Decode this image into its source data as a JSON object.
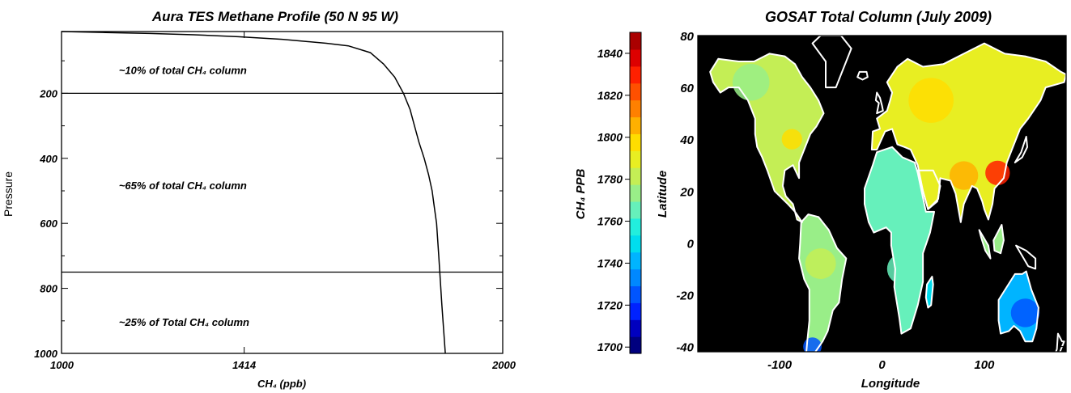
{
  "chart_data": [
    {
      "type": "line",
      "title": "Aura TES Methane Profile (50 N 95 W)",
      "xlabel": "CH₄ (ppb)",
      "ylabel": "Pressure",
      "xlim": [
        1000,
        2000
      ],
      "ylim": [
        1000,
        10
      ],
      "y_inverted": true,
      "x_ticks": [
        "1000",
        "1414",
        "2000"
      ],
      "y_ticks": [
        "200",
        "400",
        "600",
        "800",
        "1000"
      ],
      "grid": false,
      "series": [
        {
          "x": [
            1000,
            1100,
            1200,
            1300,
            1400,
            1500,
            1600,
            1650,
            1700,
            1730,
            1755,
            1775,
            1790,
            1800,
            1810,
            1822,
            1832,
            1840,
            1845,
            1850,
            1855,
            1862,
            1870
          ],
          "y": [
            10,
            13,
            16,
            20,
            26,
            34,
            46,
            54,
            75,
            110,
            150,
            200,
            250,
            300,
            350,
            400,
            450,
            500,
            550,
            600,
            700,
            850,
            1000
          ]
        }
      ],
      "hlines": [
        200,
        750
      ],
      "annotations": [
        {
          "text": "~10% of total CH₄ column",
          "x": 1130,
          "y": 140
        },
        {
          "text": "~65% of total CH₄ column",
          "x": 1130,
          "y": 495
        },
        {
          "text": "~25% of Total CH₄ column",
          "x": 1130,
          "y": 915
        }
      ]
    },
    {
      "type": "heatmap",
      "title": "GOSAT Total Column (July 2009)",
      "xlabel": "Longitude",
      "ylabel": "Latitude",
      "xlim": [
        -180,
        180
      ],
      "ylim": [
        -42,
        80
      ],
      "x_ticks": [
        "-100",
        "0",
        "100"
      ],
      "y_ticks": [
        "-40",
        "-20",
        "0",
        "20",
        "40",
        "60",
        "80"
      ],
      "background": "#000000",
      "colorbar": {
        "label": "CH₄ PPB",
        "range": [
          1697,
          1850
        ],
        "ticks": [
          "1700",
          "1720",
          "1740",
          "1760",
          "1780",
          "1800",
          "1820",
          "1840"
        ],
        "colors": [
          "#00007f",
          "#0000bf",
          "#0022ff",
          "#0055ff",
          "#0088ff",
          "#00b4ff",
          "#00ddee",
          "#22eedd",
          "#66f0bb",
          "#99ee88",
          "#c4ee55",
          "#e8ee22",
          "#ffdd00",
          "#ffb000",
          "#ff8000",
          "#ff5000",
          "#ff2000",
          "#dd0000",
          "#aa0000"
        ]
      },
      "regions": [
        {
          "name": "North America",
          "points": [
            [
              -168,
              66
            ],
            [
              -160,
              71
            ],
            [
              -140,
              70
            ],
            [
              -125,
              70
            ],
            [
              -110,
              73
            ],
            [
              -95,
              72
            ],
            [
              -85,
              69
            ],
            [
              -78,
              64
            ],
            [
              -70,
              60
            ],
            [
              -62,
              55
            ],
            [
              -57,
              50
            ],
            [
              -64,
              45
            ],
            [
              -70,
              42
            ],
            [
              -76,
              36
            ],
            [
              -81,
              31
            ],
            [
              -81,
              25
            ],
            [
              -87,
              30
            ],
            [
              -95,
              28
            ],
            [
              -97,
              22
            ],
            [
              -94,
              18
            ],
            [
              -87,
              15
            ],
            [
              -83,
              9
            ],
            [
              -78,
              8
            ],
            [
              -85,
              12
            ],
            [
              -92,
              15
            ],
            [
              -105,
              20
            ],
            [
              -112,
              28
            ],
            [
              -117,
              33
            ],
            [
              -122,
              37
            ],
            [
              -124,
              42
            ],
            [
              -124,
              48
            ],
            [
              -131,
              55
            ],
            [
              -140,
              60
            ],
            [
              -150,
              60
            ],
            [
              -158,
              58
            ],
            [
              -165,
              62
            ]
          ],
          "value": 1782
        },
        {
          "name": "South America",
          "points": [
            [
              -79,
              8
            ],
            [
              -72,
              11
            ],
            [
              -62,
              10
            ],
            [
              -52,
              5
            ],
            [
              -44,
              -2
            ],
            [
              -35,
              -6
            ],
            [
              -39,
              -14
            ],
            [
              -42,
              -23
            ],
            [
              -48,
              -26
            ],
            [
              -53,
              -34
            ],
            [
              -58,
              -38
            ],
            [
              -65,
              -42
            ],
            [
              -68,
              -46
            ],
            [
              -68,
              -52
            ],
            [
              -73,
              -53
            ],
            [
              -75,
              -47
            ],
            [
              -73,
              -38
            ],
            [
              -71,
              -30
            ],
            [
              -71,
              -18
            ],
            [
              -76,
              -14
            ],
            [
              -81,
              -6
            ],
            [
              -80,
              0
            ]
          ],
          "value": 1771
        },
        {
          "name": "Africa",
          "points": [
            [
              -17,
              15
            ],
            [
              -17,
              21
            ],
            [
              -9,
              30
            ],
            [
              -5,
              35
            ],
            [
              10,
              37
            ],
            [
              20,
              33
            ],
            [
              32,
              31
            ],
            [
              35,
              27
            ],
            [
              43,
              12
            ],
            [
              51,
              12
            ],
            [
              47,
              4
            ],
            [
              40,
              -4
            ],
            [
              40,
              -15
            ],
            [
              35,
              -24
            ],
            [
              28,
              -33
            ],
            [
              19,
              -35
            ],
            [
              17,
              -29
            ],
            [
              12,
              -17
            ],
            [
              13,
              -10
            ],
            [
              9,
              -1
            ],
            [
              9,
              4
            ],
            [
              4,
              6
            ],
            [
              -8,
              4
            ],
            [
              -13,
              8
            ]
          ],
          "value": 1769
        },
        {
          "name": "Eurasia",
          "points": [
            [
              -10,
              36
            ],
            [
              -9,
              43
            ],
            [
              -2,
              44
            ],
            [
              -5,
              48
            ],
            [
              5,
              51
            ],
            [
              8,
              55
            ],
            [
              10,
              58
            ],
            [
              5,
              62
            ],
            [
              15,
              68
            ],
            [
              25,
              71
            ],
            [
              40,
              68
            ],
            [
              60,
              69
            ],
            [
              80,
              73
            ],
            [
              100,
              77
            ],
            [
              120,
              73
            ],
            [
              140,
              72
            ],
            [
              160,
              70
            ],
            [
              175,
              66
            ],
            [
              180,
              65
            ],
            [
              178,
              62
            ],
            [
              160,
              60
            ],
            [
              155,
              55
            ],
            [
              143,
              48
            ],
            [
              135,
              44
            ],
            [
              129,
              38
            ],
            [
              122,
              31
            ],
            [
              119,
              25
            ],
            [
              110,
              21
            ],
            [
              108,
              15
            ],
            [
              104,
              9
            ],
            [
              100,
              13
            ],
            [
              98,
              16
            ],
            [
              93,
              21
            ],
            [
              88,
              22
            ],
            [
              80,
              15
            ],
            [
              77,
              8
            ],
            [
              72,
              19
            ],
            [
              67,
              24
            ],
            [
              57,
              25
            ],
            [
              55,
              17
            ],
            [
              45,
              13
            ],
            [
              40,
              20
            ],
            [
              35,
              30
            ],
            [
              28,
              36
            ],
            [
              22,
              37
            ],
            [
              15,
              38
            ],
            [
              10,
              44
            ],
            [
              3,
              43
            ],
            [
              -5,
              36
            ]
          ],
          "value": 1789
        },
        {
          "name": "Australia",
          "points": [
            [
              114,
              -22
            ],
            [
              122,
              -17
            ],
            [
              130,
              -12
            ],
            [
              137,
              -12
            ],
            [
              141,
              -11
            ],
            [
              146,
              -18
            ],
            [
              153,
              -25
            ],
            [
              151,
              -33
            ],
            [
              147,
              -38
            ],
            [
              140,
              -38
            ],
            [
              135,
              -34
            ],
            [
              129,
              -32
            ],
            [
              124,
              -34
            ],
            [
              116,
              -35
            ],
            [
              114,
              -30
            ]
          ],
          "value": 1738
        },
        {
          "name": "Greenland",
          "points": [
            [
              -55,
              60
            ],
            [
              -45,
              60
            ],
            [
              -40,
              65
            ],
            [
              -35,
              70
            ],
            [
              -30,
              75
            ],
            [
              -40,
              80
            ],
            [
              -60,
              80
            ],
            [
              -68,
              77
            ],
            [
              -55,
              70
            ]
          ],
          "value": null
        },
        {
          "name": "Arabia",
          "points": [
            [
              35,
              28
            ],
            [
              50,
              28
            ],
            [
              57,
              22
            ],
            [
              54,
              16
            ],
            [
              45,
              13
            ],
            [
              40,
              20
            ]
          ],
          "value": 1786
        },
        {
          "name": "Borneo",
          "points": [
            [
              109,
              1
            ],
            [
              117,
              7
            ],
            [
              119,
              1
            ],
            [
              116,
              -4
            ],
            [
              110,
              -3
            ]
          ],
          "value": 1771
        },
        {
          "name": "Sumatra",
          "points": [
            [
              95,
              5
            ],
            [
              104,
              -1
            ],
            [
              106,
              -6
            ],
            [
              101,
              -3
            ],
            [
              97,
              2
            ]
          ],
          "value": 1771
        },
        {
          "name": "Japan",
          "points": [
            [
              130,
              31
            ],
            [
              136,
              35
            ],
            [
              141,
              41
            ],
            [
              142,
              37
            ],
            [
              137,
              33
            ]
          ],
          "value": null
        },
        {
          "name": "Madagascar",
          "points": [
            [
              44,
              -16
            ],
            [
              49,
              -13
            ],
            [
              50,
              -16
            ],
            [
              48,
              -24
            ],
            [
              45,
              -25
            ],
            [
              43,
              -21
            ]
          ],
          "value": 1751
        },
        {
          "name": "New Guinea",
          "points": [
            [
              131,
              -1
            ],
            [
              141,
              -3
            ],
            [
              150,
              -6
            ],
            [
              150,
              -10
            ],
            [
              143,
              -9
            ],
            [
              137,
              -5
            ]
          ],
          "value": null
        },
        {
          "name": "Iceland",
          "points": [
            [
              -24,
              64
            ],
            [
              -22,
              66
            ],
            [
              -15,
              66
            ],
            [
              -14,
              64
            ],
            [
              -19,
              63
            ]
          ],
          "value": null
        },
        {
          "name": "Great Britain",
          "points": [
            [
              -5,
              50
            ],
            [
              1,
              51
            ],
            [
              0,
              53
            ],
            [
              -2,
              56
            ],
            [
              -5,
              58
            ],
            [
              -6,
              55
            ],
            [
              -3,
              54
            ]
          ],
          "value": null
        },
        {
          "name": "New Zealand",
          "points": [
            [
              172,
              -35
            ],
            [
              176,
              -38
            ],
            [
              178,
              -38
            ],
            [
              174,
              -42
            ],
            [
              169,
              -46
            ],
            [
              167,
              -45
            ],
            [
              171,
              -41
            ]
          ],
          "value": null
        }
      ],
      "hotspots": [
        {
          "lon": 80,
          "lat": 26,
          "r": 14,
          "value": 1808
        },
        {
          "lon": 113,
          "lat": 27,
          "r": 12,
          "value": 1830
        },
        {
          "lon": 48,
          "lat": 55,
          "r": 22,
          "value": 1795
        },
        {
          "lon": -88,
          "lat": 40,
          "r": 10,
          "value": 1800
        },
        {
          "lon": -128,
          "lat": 62,
          "r": 18,
          "value": 1776
        },
        {
          "lon": -60,
          "lat": -8,
          "r": 15,
          "value": 1782
        },
        {
          "lon": 20,
          "lat": -10,
          "r": 15,
          "value": 1765
        },
        {
          "lon": -68,
          "lat": -40,
          "r": 9,
          "value": 1727
        },
        {
          "lon": 140,
          "lat": -27,
          "r": 14,
          "value": 1728
        }
      ]
    }
  ]
}
